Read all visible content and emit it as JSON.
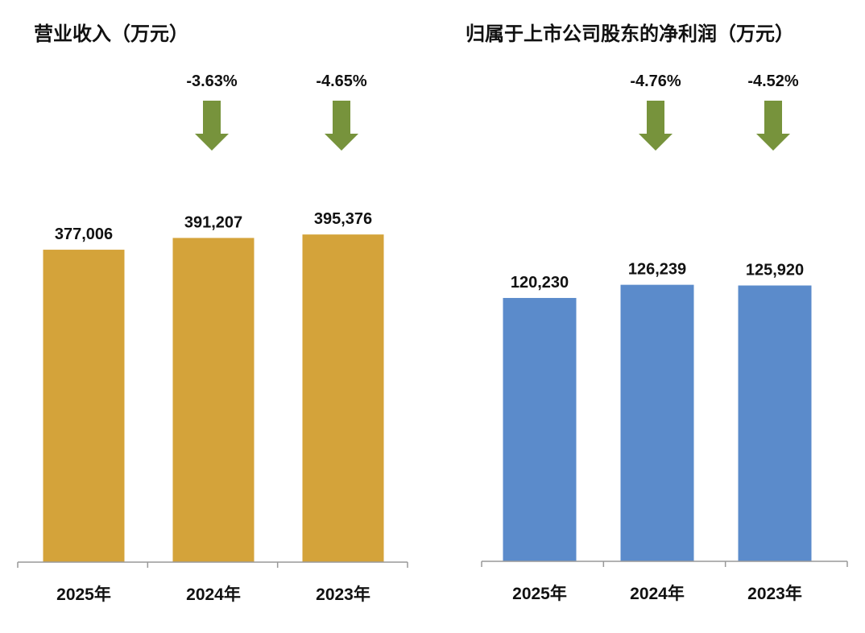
{
  "colors": {
    "revenue_bar": "#D4A33A",
    "profit_bar": "#5B8BCB",
    "arrow": "#77933C",
    "axis": "#999999"
  },
  "chart_data": [
    {
      "type": "bar",
      "title": "营业收入（万元）",
      "categories": [
        "2025年",
        "2024年",
        "2023年"
      ],
      "values": [
        377006,
        391207,
        395376
      ],
      "value_labels": [
        "377,006",
        "391,207",
        "395,376"
      ],
      "annotations": [
        {
          "category": "2024年",
          "text": "-3.63%",
          "icon": "down-arrow-icon"
        },
        {
          "category": "2023年",
          "text": "-4.65%",
          "icon": "down-arrow-icon"
        }
      ],
      "xlabel": "",
      "ylabel": "",
      "grid": false
    },
    {
      "type": "bar",
      "title": "归属于上市公司股东的净利润（万元）",
      "categories": [
        "2025年",
        "2024年",
        "2023年"
      ],
      "values": [
        120230,
        126239,
        125920
      ],
      "value_labels": [
        "120,230",
        "126,239",
        "125,920"
      ],
      "annotations": [
        {
          "category": "2024年",
          "text": "-4.76%",
          "icon": "down-arrow-icon"
        },
        {
          "category": "2023年",
          "text": "-4.52%",
          "icon": "down-arrow-icon"
        }
      ],
      "xlabel": "",
      "ylabel": "",
      "grid": false
    }
  ]
}
